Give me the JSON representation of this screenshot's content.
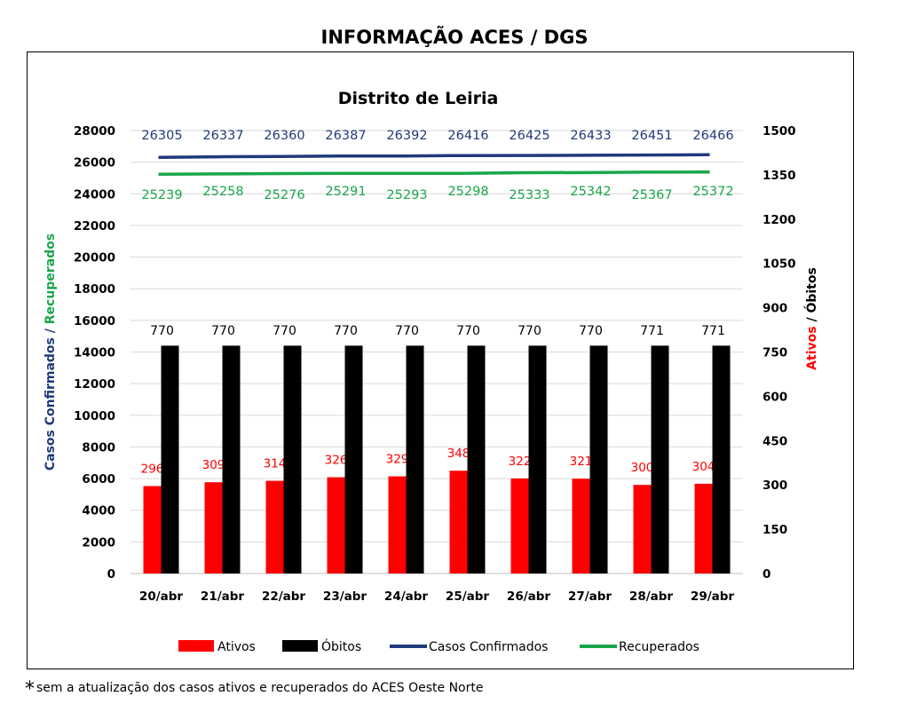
{
  "page_title": "INFORMAÇÃO ACES / DGS",
  "footnote": {
    "star": "*",
    "text": "sem a atualização dos casos ativos e recuperados do ACES Oeste Norte"
  },
  "colors": {
    "ativos": "#ff0000",
    "obitos": "#000000",
    "confirmados": "#1f3a7a",
    "recuperados": "#1aa64a",
    "grid": "#d9d9d9"
  },
  "chart_data": {
    "type": "bar",
    "title": "Distrito de Leiria",
    "categories": [
      "20/abr",
      "21/abr",
      "22/abr",
      "23/abr",
      "24/abr",
      "25/abr",
      "26/abr",
      "27/abr",
      "28/abr",
      "29/abr"
    ],
    "left_axis": {
      "label_part1": "Casos Confirmados / ",
      "label_part2": "Recuperados",
      "ylim": [
        0,
        28000
      ],
      "ticks": [
        0,
        2000,
        4000,
        6000,
        8000,
        10000,
        12000,
        14000,
        16000,
        18000,
        20000,
        22000,
        24000,
        26000,
        28000
      ]
    },
    "right_axis": {
      "label_part1": "Ativos",
      "label_part2": " / Óbitos",
      "ylim": [
        0,
        1500
      ],
      "ticks": [
        0,
        150,
        300,
        450,
        600,
        750,
        900,
        1050,
        1200,
        1350,
        1500
      ]
    },
    "grid": true,
    "legend_position": "bottom",
    "series": [
      {
        "name": "Ativos",
        "type": "bar",
        "axis": "right",
        "values": [
          296,
          309,
          314,
          326,
          329,
          348,
          322,
          321,
          300,
          304
        ]
      },
      {
        "name": "Óbitos",
        "type": "bar",
        "axis": "left",
        "values": [
          14400,
          14400,
          14400,
          14400,
          14400,
          14400,
          14400,
          14400,
          14400,
          14400
        ],
        "labels": [
          "770",
          "770",
          "770",
          "770",
          "770",
          "770",
          "770",
          "770",
          "771",
          "771"
        ]
      },
      {
        "name": "Casos Confirmados",
        "type": "line",
        "axis": "left",
        "values": [
          26305,
          26337,
          26360,
          26387,
          26392,
          26416,
          26425,
          26433,
          26451,
          26466
        ]
      },
      {
        "name": "Recuperados",
        "type": "line",
        "axis": "left",
        "values": [
          25239,
          25258,
          25276,
          25291,
          25293,
          25298,
          25333,
          25342,
          25367,
          25372
        ]
      }
    ]
  }
}
